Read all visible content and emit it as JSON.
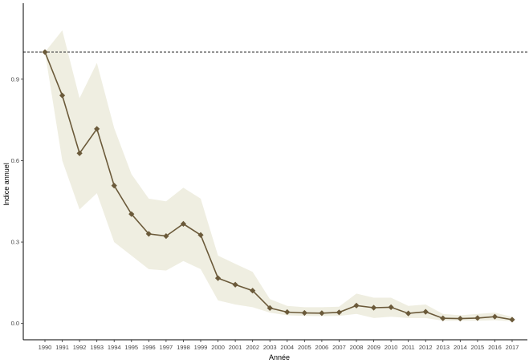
{
  "chart_data": {
    "type": "line",
    "xlabel": "Année",
    "ylabel": "Indice annuel",
    "x": [
      1990,
      1991,
      1992,
      1993,
      1994,
      1995,
      1996,
      1997,
      1998,
      1999,
      2000,
      2001,
      2002,
      2003,
      2004,
      2005,
      2006,
      2007,
      2008,
      2009,
      2010,
      2011,
      2012,
      2013,
      2014,
      2015,
      2016,
      2017
    ],
    "series": [
      {
        "values": [
          1.0,
          0.84,
          0.627,
          0.717,
          0.508,
          0.403,
          0.33,
          0.322,
          0.367,
          0.326,
          0.167,
          0.143,
          0.121,
          0.057,
          0.042,
          0.039,
          0.038,
          0.041,
          0.066,
          0.058,
          0.06,
          0.037,
          0.043,
          0.019,
          0.018,
          0.02,
          0.025,
          0.014
        ],
        "lower": [
          1.0,
          0.6,
          0.42,
          0.48,
          0.3,
          0.25,
          0.2,
          0.195,
          0.23,
          0.2,
          0.085,
          0.07,
          0.06,
          0.04,
          0.03,
          0.028,
          0.027,
          0.028,
          0.035,
          0.02,
          0.025,
          0.02,
          0.02,
          0.01,
          0.01,
          0.01,
          0.012,
          0.008
        ],
        "upper": [
          1.0,
          1.08,
          0.83,
          0.96,
          0.72,
          0.55,
          0.46,
          0.45,
          0.5,
          0.46,
          0.25,
          0.22,
          0.19,
          0.09,
          0.065,
          0.06,
          0.06,
          0.062,
          0.11,
          0.095,
          0.095,
          0.065,
          0.07,
          0.035,
          0.03,
          0.035,
          0.04,
          0.024
        ]
      }
    ],
    "y_ticks": [
      "0.0",
      "0.3",
      "0.6",
      "0.9"
    ],
    "ylim": [
      -0.06,
      1.18
    ],
    "reference_line": 1.0,
    "grid": false,
    "colors": {
      "line": "#6b5a3a",
      "band": "#efeee1",
      "reference": "#555555"
    }
  }
}
